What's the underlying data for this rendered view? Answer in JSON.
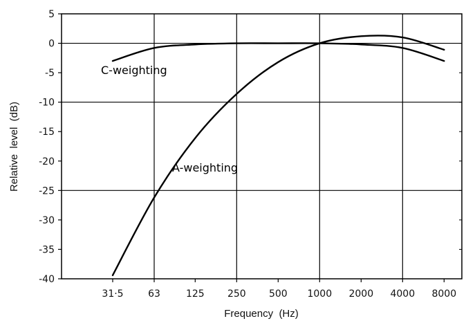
{
  "chart_data": {
    "type": "line",
    "title": "",
    "xlabel": "Frequency  (Hz)",
    "ylabel": "Relative  level  (dB)",
    "x_scale": "log",
    "x_ticks": [
      31.5,
      63,
      125,
      250,
      500,
      1000,
      2000,
      4000,
      8000
    ],
    "x_tick_labels": [
      "31·5",
      "63",
      "125",
      "250",
      "500",
      "1000",
      "2000",
      "4000",
      "8000"
    ],
    "ylim": [
      -40,
      5
    ],
    "y_ticks": [
      5,
      0,
      -5,
      -10,
      -15,
      -20,
      -25,
      -30,
      -35,
      -40
    ],
    "y_tick_labels": [
      "5",
      "0",
      "-5",
      "-10",
      "-15",
      "-20",
      "-25",
      "-30",
      "-35",
      "-40"
    ],
    "grid": "major lines at 63, 250, 1000, 4000 Hz and at 0, -10, -25 dB",
    "series": [
      {
        "label": "C-weighting",
        "x": [
          31.5,
          63,
          125,
          250,
          500,
          1000,
          2000,
          4000,
          8000
        ],
        "y": [
          -3.0,
          -0.8,
          -0.2,
          0,
          0,
          0,
          -0.2,
          -0.8,
          -3.0
        ]
      },
      {
        "label": "A-weighting",
        "x": [
          31.5,
          63,
          125,
          250,
          500,
          1000,
          2000,
          4000,
          8000
        ],
        "y": [
          -39.4,
          -26.2,
          -16.1,
          -8.6,
          -3.2,
          0,
          1.2,
          1.0,
          -1.1
        ]
      }
    ],
    "annotations": [
      "C-weighting",
      "A-weighting"
    ]
  }
}
